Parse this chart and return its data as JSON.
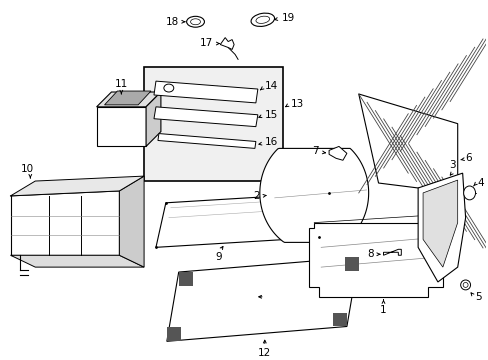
{
  "bg_color": "#ffffff",
  "line_color": "#000000",
  "fs": 7.5
}
